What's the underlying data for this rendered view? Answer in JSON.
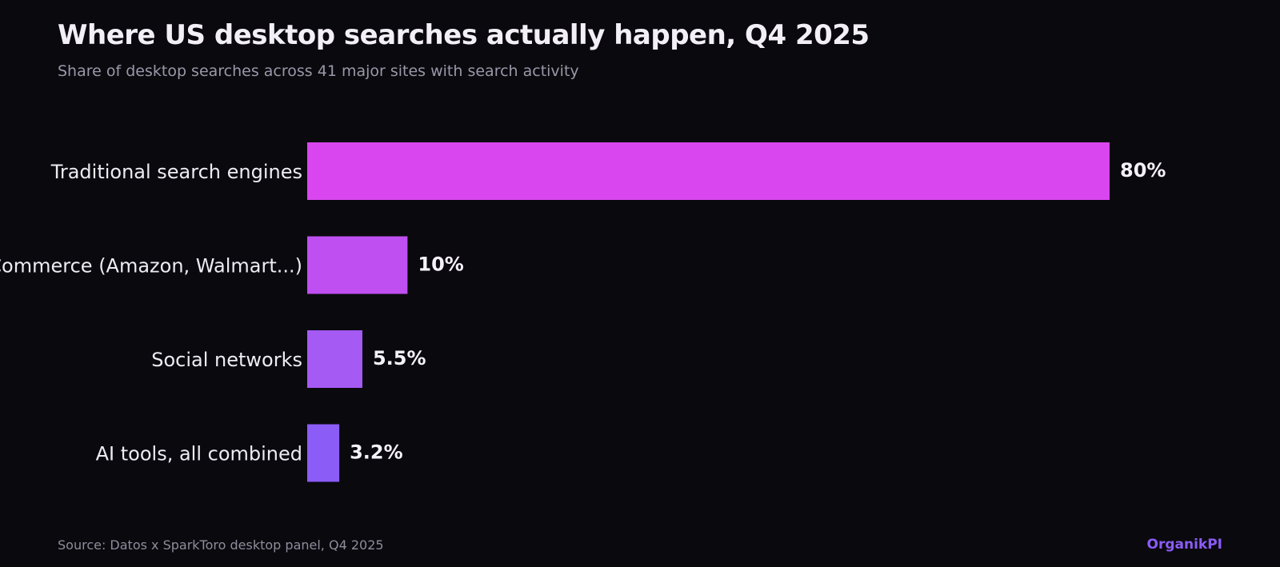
{
  "title": "Where US desktop searches actually happen, Q4 2025",
  "subtitle": "Share of desktop searches across 41 major sites with search activity",
  "source": "Source: Datos x SparkToro desktop panel, Q4 2025",
  "brand": "OrganikPI",
  "chart_data": {
    "type": "bar",
    "orientation": "horizontal",
    "title": "Where US desktop searches actually happen, Q4 2025",
    "subtitle": "Share of desktop searches across 41 major sites with search activity",
    "xlabel": "",
    "ylabel": "",
    "xlim": [
      0,
      80
    ],
    "grid": false,
    "categories": [
      "Traditional search engines",
      "Commerce (Amazon, Walmart...)",
      "Social networks",
      "AI tools, all combined"
    ],
    "values": [
      80,
      10,
      5.5,
      3.2
    ],
    "data_labels": [
      "80%",
      "10%",
      "5.5%",
      "3.2%"
    ],
    "colors": [
      "#d946ef",
      "#c04ff2",
      "#a55af4",
      "#8b5cf6"
    ]
  }
}
